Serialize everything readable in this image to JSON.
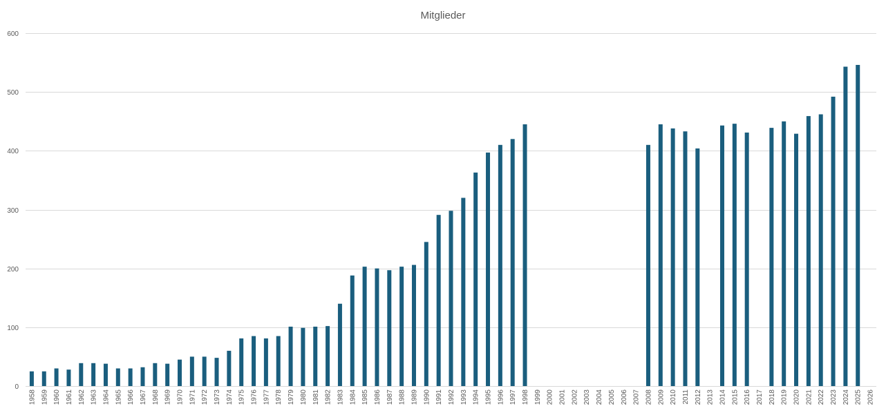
{
  "chart_data": {
    "type": "bar",
    "title": "Mitglieder",
    "xlabel": "",
    "ylabel": "",
    "ylim": [
      0,
      600
    ],
    "yticks": [
      0,
      100,
      200,
      300,
      400,
      500,
      600
    ],
    "grid": true,
    "legend": "none",
    "bar_color": "#1a5e7e",
    "categories": [
      "1958",
      "1959",
      "1960",
      "1961",
      "1962",
      "1963",
      "1964",
      "1965",
      "1966",
      "1967",
      "1968",
      "1969",
      "1970",
      "1971",
      "1972",
      "1973",
      "1974",
      "1975",
      "1976",
      "1977",
      "1978",
      "1979",
      "1980",
      "1981",
      "1982",
      "1983",
      "1984",
      "1985",
      "1986",
      "1987",
      "1988",
      "1989",
      "1990",
      "1991",
      "1992",
      "1993",
      "1994",
      "1995",
      "1996",
      "1997",
      "1998",
      "1999",
      "2000",
      "2001",
      "2002",
      "2003",
      "2004",
      "2005",
      "2006",
      "2007",
      "2008",
      "2009",
      "2010",
      "2011",
      "2012",
      "2013",
      "2014",
      "2015",
      "2016",
      "2017",
      "2018",
      "2019",
      "2020",
      "2021",
      "2022",
      "2023",
      "2024",
      "2025",
      "2026"
    ],
    "values": [
      25,
      25,
      30,
      28,
      39,
      39,
      38,
      30,
      30,
      32,
      39,
      38,
      45,
      50,
      50,
      48,
      60,
      81,
      85,
      81,
      85,
      101,
      99,
      101,
      102,
      140,
      188,
      203,
      200,
      197,
      203,
      206,
      245,
      291,
      298,
      320,
      363,
      397,
      410,
      420,
      445,
      null,
      null,
      null,
      null,
      null,
      null,
      null,
      null,
      null,
      410,
      445,
      438,
      433,
      404,
      null,
      443,
      446,
      431,
      null,
      439,
      450,
      429,
      459,
      462,
      492,
      543,
      546,
      null
    ]
  }
}
